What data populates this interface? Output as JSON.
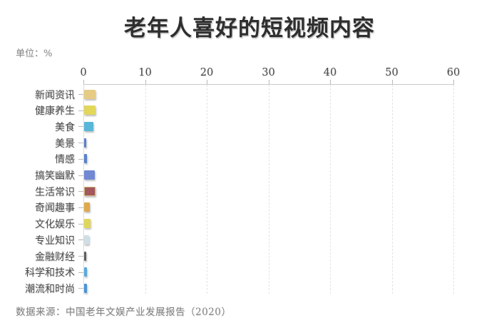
{
  "header": {
    "title": "老年人喜好的短视频内容",
    "unit_label": "单位：%"
  },
  "footer": {
    "source": "数据来源：中国老年文娱产业发展报告（2020）"
  },
  "chart_data": {
    "type": "bar",
    "orientation": "horizontal",
    "title": "老年人喜好的短视频内容",
    "unit": "%",
    "xlabel": "",
    "ylabel": "",
    "xlim": [
      0,
      60
    ],
    "x_ticks": [
      0,
      10,
      20,
      30,
      40,
      50,
      60
    ],
    "x_axis_position": "top",
    "grid": "vertical-dashed",
    "legend": "none",
    "categories": [
      "新闻资讯",
      "健康养生",
      "美食",
      "美景",
      "情感",
      "搞笑幽默",
      "生活常识",
      "奇闻趣事",
      "文化娱乐",
      "专业知识",
      "金融财经",
      "科学和技术",
      "潮流和时尚"
    ],
    "values": [
      1.8,
      1.9,
      1.5,
      0.4,
      0.5,
      1.7,
      1.6,
      0.9,
      1.0,
      0.8,
      0.4,
      0.5,
      0.45
    ],
    "bar_colors": [
      "#e6cb85",
      "#e2d65b",
      "#58b7d8",
      "#5a81cf",
      "#5a81cf",
      "#7189d4",
      "#a4575c",
      "#dfa94b",
      "#e0d75a",
      "#cfdfe6",
      "#5c6064",
      "#58aade",
      "#4b94d9"
    ],
    "highlight_border": {
      "index": 6,
      "color": "#c9b87a"
    },
    "colors": {
      "axis_line": "#c9c9c9",
      "y_axis_line": "#dcdcdc",
      "tick_mark": "#b8b8b8",
      "gridline": "#e3e3e3",
      "tick_label": "#474747",
      "category_label": "#4d4d4d"
    }
  }
}
